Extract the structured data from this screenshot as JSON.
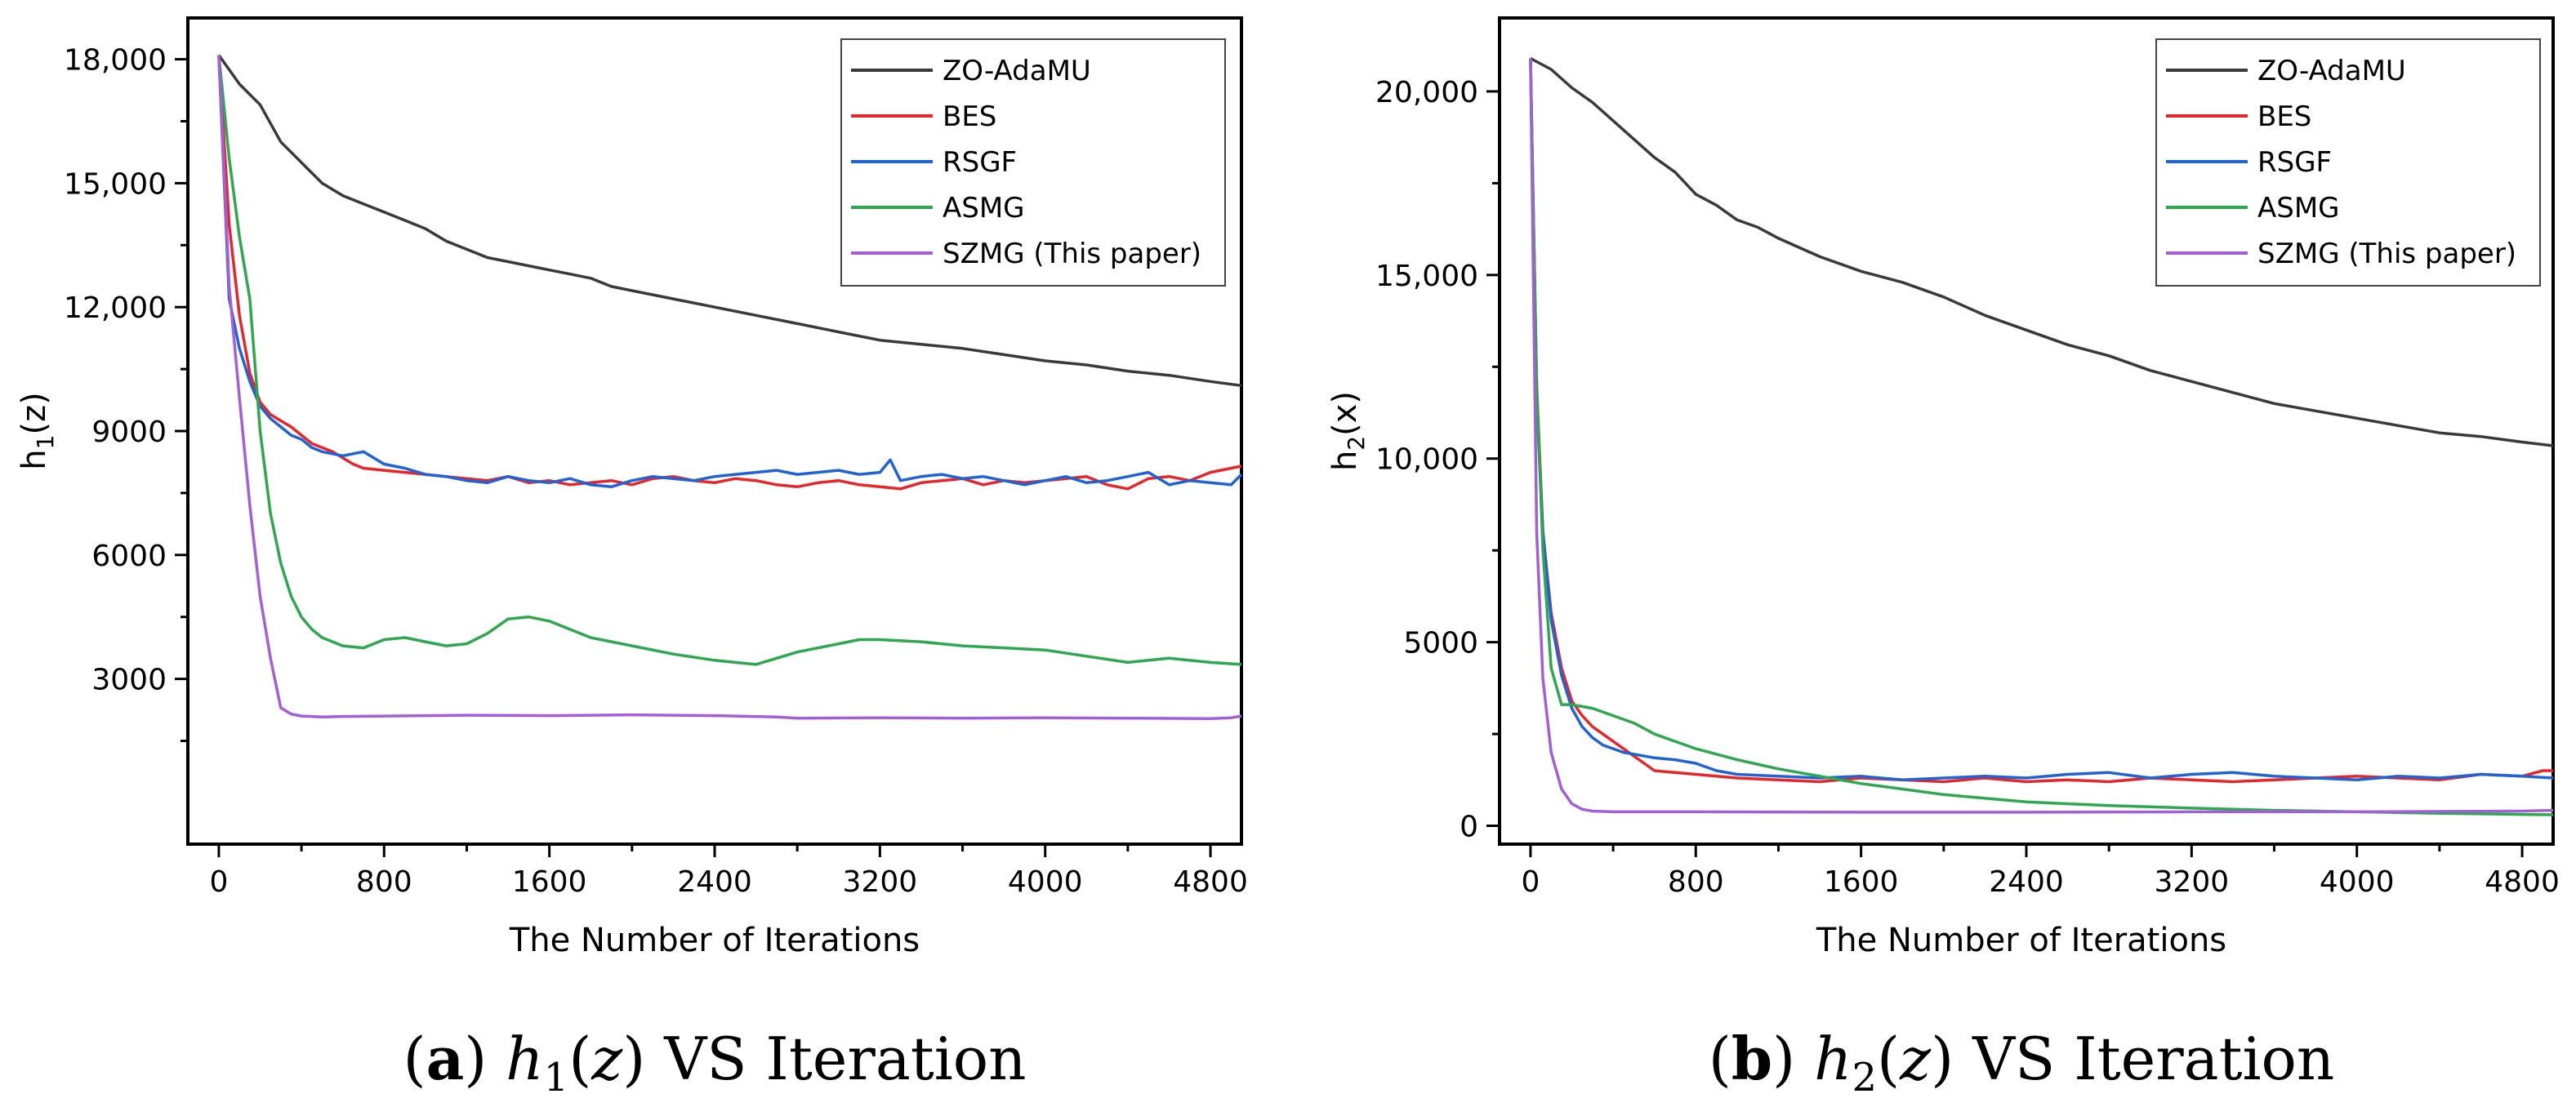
{
  "chart_data": [
    {
      "type": "line",
      "panel": "a",
      "caption": {
        "letter": "a",
        "math_func": "h",
        "math_sub": "1",
        "math_arg": "z",
        "rest": "VS Iteration"
      },
      "xlabel": "The Number of Iterations",
      "ylabel_main": "h",
      "ylabel_sub": "1",
      "ylabel_arg": "(z)",
      "xlim": [
        -150,
        4950
      ],
      "ylim": [
        -1000,
        19000
      ],
      "xticks": [
        0,
        800,
        1600,
        2400,
        3200,
        4000,
        4800
      ],
      "xtick_labels": [
        "0",
        "800",
        "1600",
        "2400",
        "3200",
        "4000",
        "4800"
      ],
      "yticks": [
        3000,
        6000,
        9000,
        12000,
        15000,
        18000
      ],
      "ytick_labels": [
        "3000",
        "6000",
        "9000",
        "12,000",
        "15,000",
        "18,000"
      ],
      "legend_position": "top-right",
      "series": [
        {
          "name": "ZO-AdaMU",
          "color": "#3a3a3a",
          "x": [
            0,
            100,
            200,
            300,
            400,
            500,
            600,
            700,
            800,
            900,
            1000,
            1100,
            1200,
            1300,
            1400,
            1500,
            1600,
            1700,
            1800,
            1900,
            2000,
            2200,
            2400,
            2600,
            2800,
            3000,
            3200,
            3400,
            3600,
            3800,
            4000,
            4200,
            4400,
            4600,
            4800,
            4950
          ],
          "y": [
            18100,
            17400,
            16900,
            16000,
            15500,
            15000,
            14700,
            14500,
            14300,
            14100,
            13900,
            13600,
            13400,
            13200,
            13100,
            13000,
            12900,
            12800,
            12700,
            12500,
            12400,
            12200,
            12000,
            11800,
            11600,
            11400,
            11200,
            11100,
            11000,
            10850,
            10700,
            10600,
            10450,
            10350,
            10200,
            10100
          ]
        },
        {
          "name": "BES",
          "color": "#e8262a",
          "x": [
            0,
            50,
            100,
            150,
            200,
            250,
            300,
            350,
            400,
            450,
            500,
            550,
            600,
            650,
            700,
            800,
            900,
            1000,
            1100,
            1200,
            1300,
            1400,
            1500,
            1600,
            1700,
            1800,
            1900,
            2000,
            2100,
            2200,
            2300,
            2400,
            2500,
            2600,
            2700,
            2800,
            2900,
            3000,
            3100,
            3200,
            3300,
            3400,
            3500,
            3600,
            3700,
            3800,
            3900,
            4000,
            4100,
            4200,
            4300,
            4400,
            4500,
            4600,
            4700,
            4800,
            4900,
            4950
          ],
          "y": [
            18100,
            14000,
            11800,
            10400,
            9700,
            9400,
            9250,
            9100,
            8900,
            8700,
            8600,
            8500,
            8350,
            8200,
            8100,
            8050,
            8000,
            7950,
            7900,
            7850,
            7800,
            7900,
            7750,
            7800,
            7700,
            7750,
            7800,
            7700,
            7850,
            7900,
            7800,
            7750,
            7850,
            7800,
            7700,
            7650,
            7750,
            7800,
            7700,
            7650,
            7600,
            7750,
            7800,
            7850,
            7700,
            7800,
            7750,
            7800,
            7850,
            7900,
            7700,
            7600,
            7850,
            7900,
            7800,
            8000,
            8100,
            8150
          ]
        },
        {
          "name": "RSGF",
          "color": "#1f63d6",
          "x": [
            0,
            50,
            100,
            150,
            200,
            250,
            300,
            350,
            400,
            450,
            500,
            550,
            600,
            650,
            700,
            800,
            900,
            1000,
            1100,
            1200,
            1300,
            1400,
            1500,
            1600,
            1700,
            1800,
            1900,
            2000,
            2100,
            2200,
            2300,
            2400,
            2500,
            2600,
            2700,
            2800,
            2900,
            3000,
            3100,
            3200,
            3250,
            3300,
            3400,
            3500,
            3600,
            3700,
            3800,
            3900,
            4000,
            4100,
            4200,
            4300,
            4400,
            4500,
            4600,
            4700,
            4800,
            4900,
            4950
          ],
          "y": [
            18100,
            12200,
            11000,
            10200,
            9600,
            9300,
            9100,
            8900,
            8800,
            8600,
            8500,
            8450,
            8400,
            8450,
            8500,
            8200,
            8100,
            7950,
            7900,
            7800,
            7750,
            7900,
            7800,
            7750,
            7850,
            7700,
            7650,
            7800,
            7900,
            7850,
            7800,
            7900,
            7950,
            8000,
            8050,
            7950,
            8000,
            8050,
            7950,
            8000,
            8300,
            7800,
            7900,
            7950,
            7850,
            7900,
            7800,
            7700,
            7800,
            7900,
            7750,
            7800,
            7900,
            8000,
            7700,
            7800,
            7750,
            7700,
            7950
          ]
        },
        {
          "name": "ASMG",
          "color": "#2ea84f",
          "x": [
            0,
            50,
            100,
            150,
            200,
            250,
            300,
            350,
            400,
            450,
            500,
            600,
            700,
            800,
            900,
            1000,
            1100,
            1200,
            1300,
            1400,
            1500,
            1600,
            1700,
            1800,
            2000,
            2200,
            2400,
            2600,
            2800,
            3000,
            3100,
            3200,
            3400,
            3600,
            3800,
            4000,
            4200,
            4400,
            4500,
            4600,
            4800,
            4950
          ],
          "y": [
            18100,
            15600,
            13700,
            12200,
            9000,
            7000,
            5800,
            5000,
            4500,
            4200,
            4000,
            3800,
            3750,
            3950,
            4000,
            3900,
            3800,
            3850,
            4100,
            4450,
            4500,
            4400,
            4200,
            4000,
            3800,
            3600,
            3450,
            3350,
            3650,
            3850,
            3950,
            3950,
            3900,
            3800,
            3750,
            3700,
            3550,
            3400,
            3450,
            3500,
            3400,
            3350
          ]
        },
        {
          "name": "SZMG (This paper)",
          "color": "#a35ed8",
          "x": [
            0,
            50,
            100,
            150,
            200,
            250,
            300,
            350,
            400,
            500,
            600,
            800,
            1000,
            1200,
            1600,
            2000,
            2400,
            2700,
            2800,
            3200,
            3600,
            4000,
            4400,
            4800,
            4900,
            4950
          ],
          "y": [
            18100,
            12500,
            9800,
            7200,
            5000,
            3500,
            2300,
            2150,
            2100,
            2080,
            2090,
            2100,
            2110,
            2120,
            2110,
            2130,
            2110,
            2080,
            2050,
            2060,
            2050,
            2060,
            2050,
            2040,
            2060,
            2100
          ]
        }
      ]
    },
    {
      "type": "line",
      "panel": "b",
      "caption": {
        "letter": "b",
        "math_func": "h",
        "math_sub": "2",
        "math_arg": "z",
        "rest": "VS Iteration"
      },
      "xlabel": "The Number of Iterations",
      "ylabel_main": "h",
      "ylabel_sub": "2",
      "ylabel_arg": "(x)",
      "xlim": [
        -150,
        4950
      ],
      "ylim": [
        -500,
        22000
      ],
      "xticks": [
        0,
        800,
        1600,
        2400,
        3200,
        4000,
        4800
      ],
      "xtick_labels": [
        "0",
        "800",
        "1600",
        "2400",
        "3200",
        "4000",
        "4800"
      ],
      "yticks": [
        0,
        5000,
        10000,
        15000,
        20000
      ],
      "ytick_labels": [
        "0",
        "5000",
        "10,000",
        "15,000",
        "20,000"
      ],
      "legend_position": "top-right",
      "series": [
        {
          "name": "ZO-AdaMU",
          "color": "#3a3a3a",
          "x": [
            0,
            100,
            200,
            300,
            400,
            500,
            600,
            700,
            800,
            900,
            1000,
            1100,
            1200,
            1400,
            1600,
            1800,
            2000,
            2200,
            2400,
            2600,
            2800,
            3000,
            3200,
            3400,
            3600,
            3800,
            4000,
            4200,
            4400,
            4600,
            4800,
            4950
          ],
          "y": [
            20900,
            20600,
            20100,
            19700,
            19200,
            18700,
            18200,
            17800,
            17200,
            16900,
            16500,
            16300,
            16000,
            15500,
            15100,
            14800,
            14400,
            13900,
            13500,
            13100,
            12800,
            12400,
            12100,
            11800,
            11500,
            11300,
            11100,
            10900,
            10700,
            10600,
            10450,
            10350
          ]
        },
        {
          "name": "BES",
          "color": "#e8262a",
          "x": [
            0,
            30,
            60,
            100,
            150,
            200,
            250,
            300,
            350,
            400,
            450,
            500,
            550,
            600,
            700,
            800,
            900,
            1000,
            1200,
            1400,
            1600,
            1800,
            2000,
            2200,
            2400,
            2600,
            2800,
            3000,
            3200,
            3400,
            3600,
            3800,
            4000,
            4200,
            4400,
            4600,
            4800,
            4900,
            4950
          ],
          "y": [
            20900,
            12000,
            8000,
            5800,
            4300,
            3400,
            3000,
            2700,
            2500,
            2300,
            2100,
            1900,
            1700,
            1500,
            1450,
            1400,
            1350,
            1300,
            1250,
            1200,
            1300,
            1250,
            1200,
            1300,
            1200,
            1250,
            1200,
            1300,
            1250,
            1200,
            1250,
            1300,
            1350,
            1300,
            1250,
            1400,
            1350,
            1500,
            1500
          ]
        },
        {
          "name": "RSGF",
          "color": "#1f63d6",
          "x": [
            0,
            30,
            60,
            100,
            150,
            200,
            250,
            300,
            350,
            400,
            450,
            500,
            600,
            700,
            800,
            900,
            1000,
            1200,
            1400,
            1600,
            1800,
            2000,
            2200,
            2400,
            2600,
            2800,
            3000,
            3200,
            3400,
            3600,
            3800,
            4000,
            4200,
            4400,
            4600,
            4800,
            4950
          ],
          "y": [
            20900,
            11500,
            8000,
            5600,
            4100,
            3200,
            2700,
            2400,
            2200,
            2100,
            2000,
            1950,
            1850,
            1800,
            1700,
            1500,
            1400,
            1350,
            1300,
            1350,
            1250,
            1300,
            1350,
            1300,
            1400,
            1450,
            1300,
            1400,
            1450,
            1350,
            1300,
            1250,
            1350,
            1300,
            1400,
            1350,
            1300
          ]
        },
        {
          "name": "ASMG",
          "color": "#2ea84f",
          "x": [
            0,
            30,
            60,
            100,
            150,
            200,
            300,
            400,
            500,
            600,
            800,
            1000,
            1200,
            1400,
            1600,
            1800,
            2000,
            2400,
            2800,
            3200,
            3600,
            4000,
            4400,
            4800,
            4950
          ],
          "y": [
            20900,
            12000,
            7500,
            4300,
            3300,
            3300,
            3200,
            3000,
            2800,
            2500,
            2100,
            1800,
            1550,
            1350,
            1150,
            1000,
            850,
            650,
            550,
            480,
            420,
            380,
            340,
            310,
            300
          ]
        },
        {
          "name": "SZMG (This paper)",
          "color": "#a35ed8",
          "x": [
            0,
            30,
            60,
            100,
            150,
            200,
            250,
            300,
            400,
            800,
            1600,
            2400,
            3200,
            4000,
            4800,
            4950
          ],
          "y": [
            20900,
            8000,
            4000,
            2000,
            1000,
            600,
            450,
            400,
            380,
            380,
            370,
            370,
            380,
            380,
            400,
            420
          ]
        }
      ]
    }
  ]
}
